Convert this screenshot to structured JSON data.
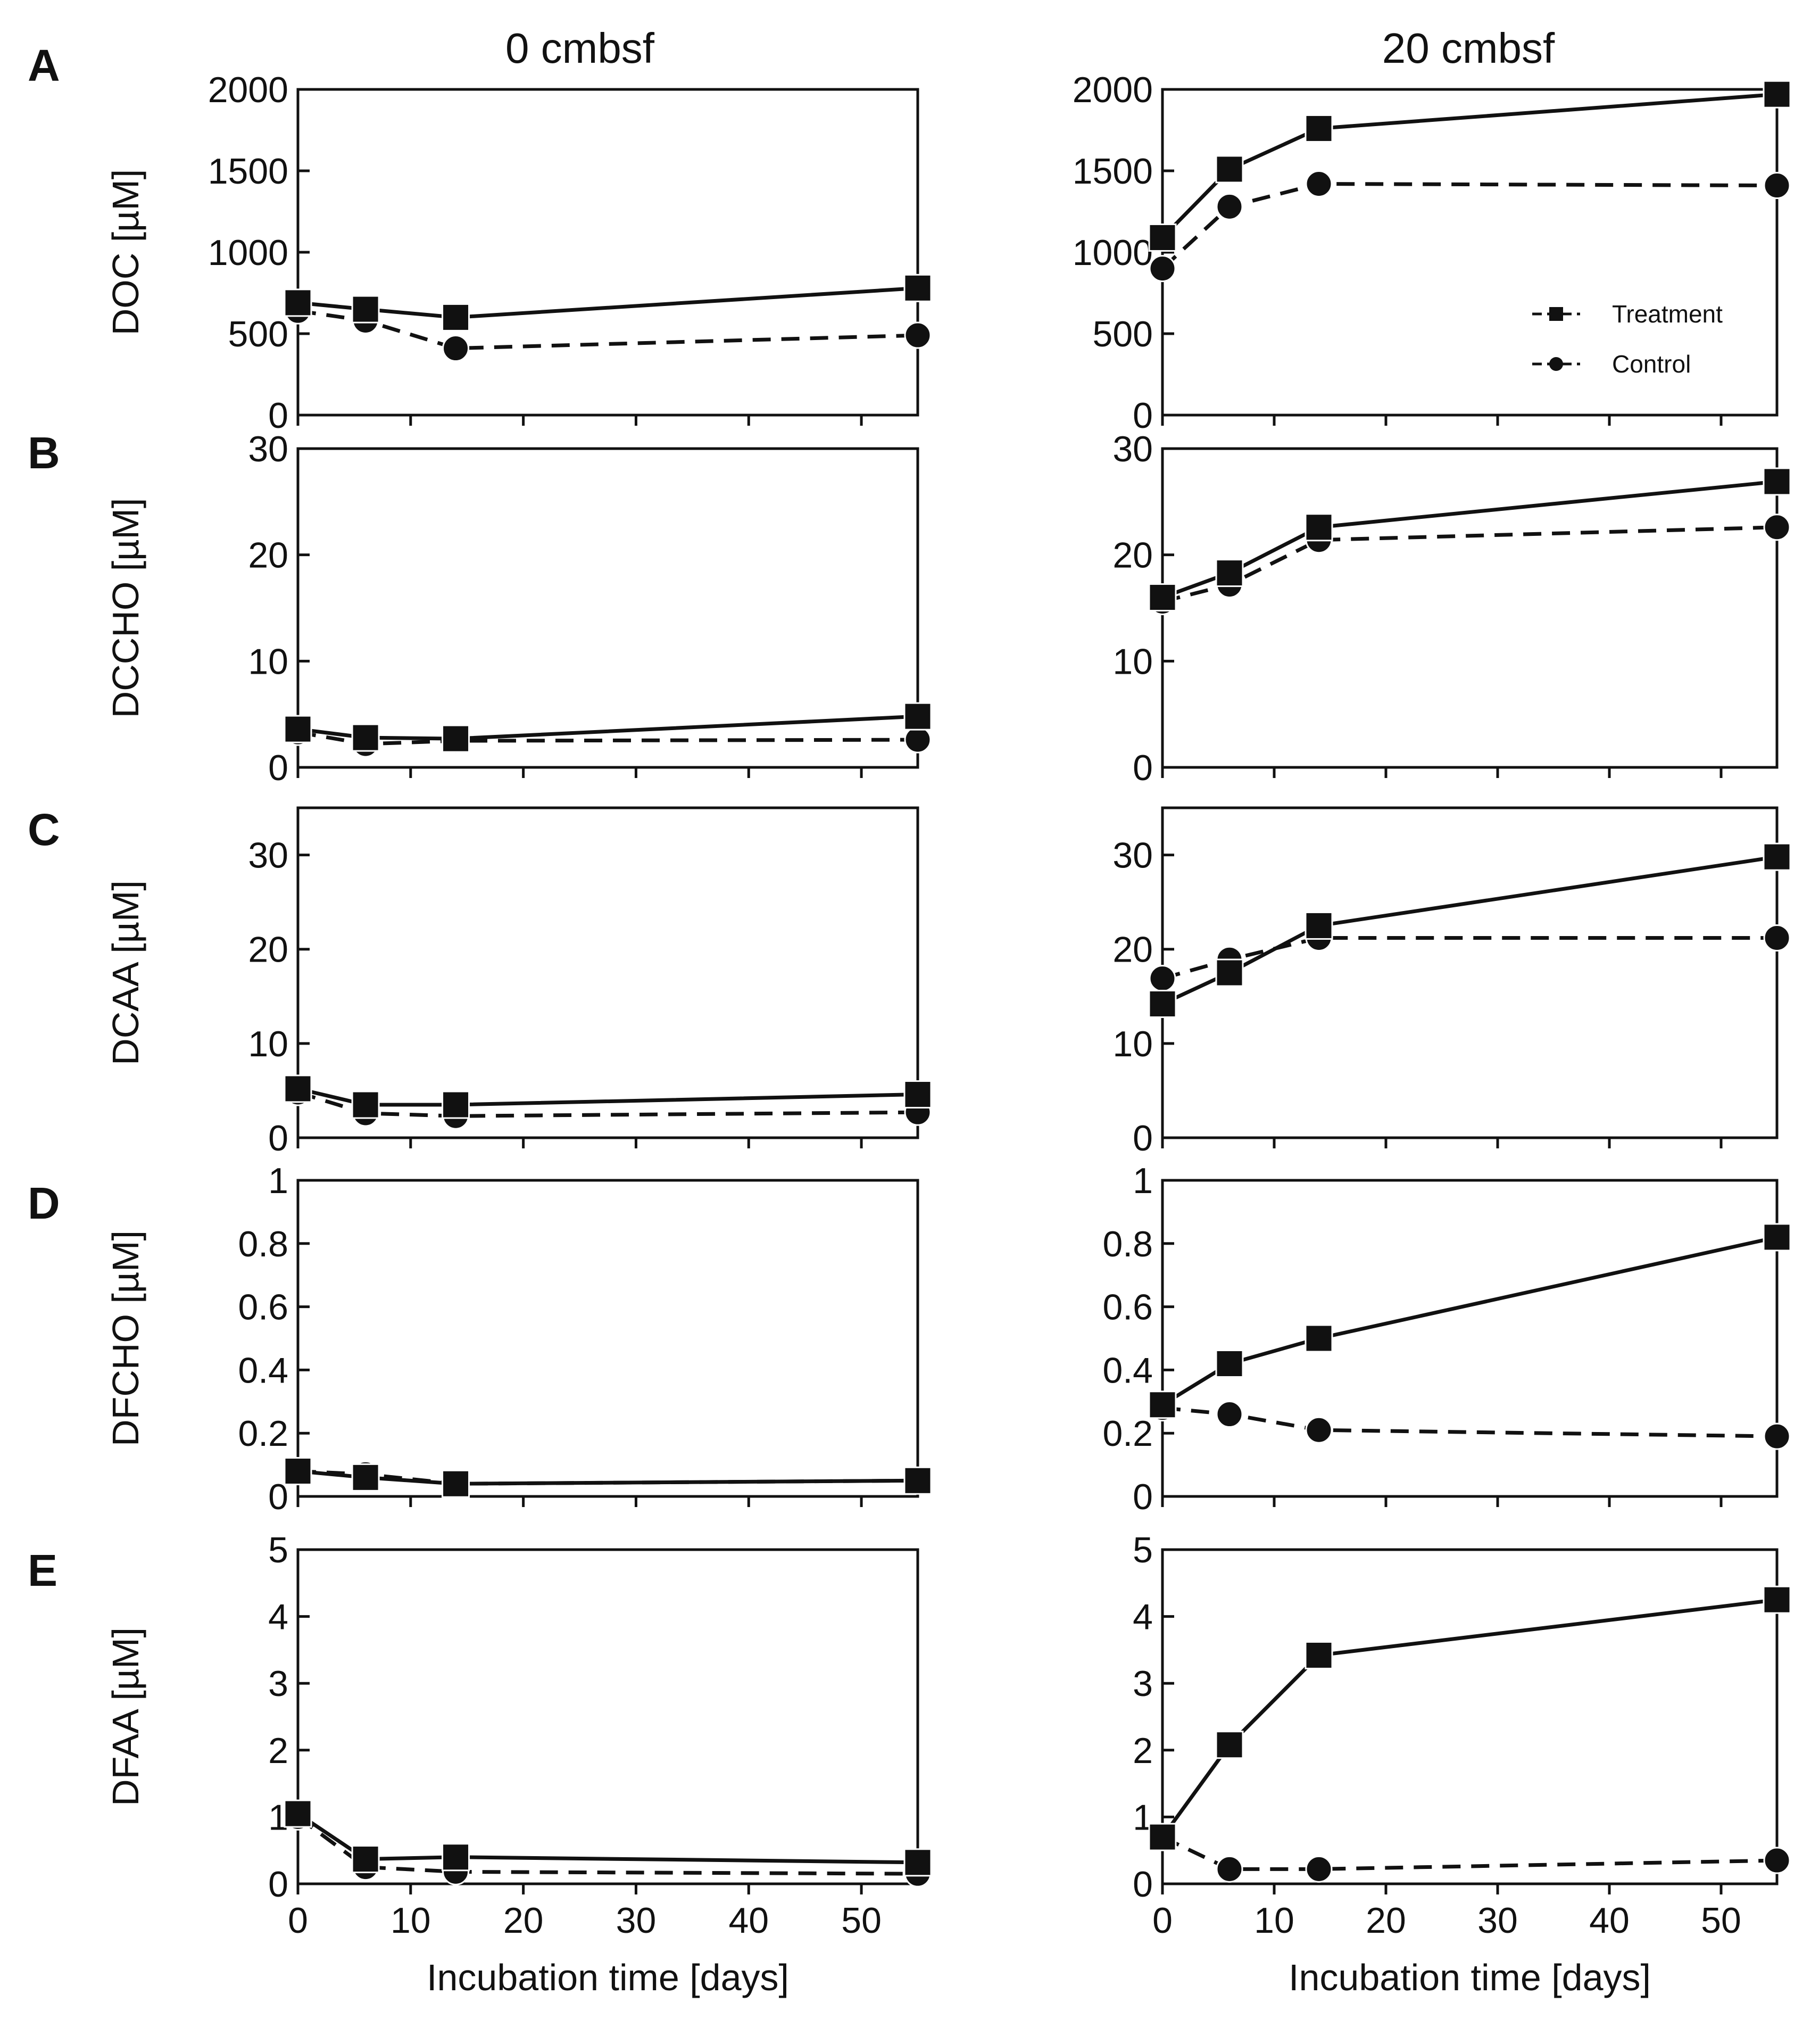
{
  "figure": {
    "columns": [
      "0 cmbsf",
      "20 cmbsf"
    ],
    "rows": [
      "A",
      "B",
      "C",
      "D",
      "E"
    ],
    "xlabel": "Incubation time [days]",
    "legend": {
      "treatment": "Treatment",
      "control": "Control"
    }
  },
  "chart_data": [
    {
      "id": "A-0",
      "row": "A",
      "column": "0 cmbsf",
      "type": "line",
      "ylabel": "DOC [µM]",
      "xlim": [
        0,
        55
      ],
      "ylim": [
        0,
        2000
      ],
      "yticks": [
        0,
        500,
        1000,
        1500,
        2000
      ],
      "ytick_labels": [
        "0",
        "500",
        "1000",
        "1500",
        "2000"
      ],
      "xticks": [
        0,
        10,
        20,
        30,
        40,
        50
      ],
      "xtick_labels": [
        "0",
        "10",
        "20",
        "30",
        "40",
        "50"
      ],
      "show_xtick_labels": false,
      "x": [
        0,
        6,
        14,
        55
      ],
      "series": [
        {
          "name": "Treatment",
          "marker": "square",
          "line": "solid",
          "values": [
            690,
            650,
            600,
            780
          ]
        },
        {
          "name": "Control",
          "marker": "circle",
          "line": "dashed",
          "values": [
            640,
            580,
            410,
            490
          ]
        }
      ]
    },
    {
      "id": "A-20",
      "row": "A",
      "column": "20 cmbsf",
      "type": "line",
      "ylabel": "",
      "xlim": [
        0,
        55
      ],
      "ylim": [
        0,
        2000
      ],
      "yticks": [
        0,
        500,
        1000,
        1500,
        2000
      ],
      "ytick_labels": [
        "0",
        "500",
        "1000",
        "1500",
        "2000"
      ],
      "xticks": [
        0,
        10,
        20,
        30,
        40,
        50
      ],
      "xtick_labels": [
        "0",
        "10",
        "20",
        "30",
        "40",
        "50"
      ],
      "show_xtick_labels": false,
      "x": [
        0,
        6,
        14,
        55
      ],
      "legend": "center-right",
      "series": [
        {
          "name": "Treatment",
          "marker": "square",
          "line": "solid",
          "values": [
            1090,
            1510,
            1760,
            1970
          ]
        },
        {
          "name": "Control",
          "marker": "circle",
          "line": "dashed",
          "values": [
            900,
            1280,
            1420,
            1410
          ]
        }
      ]
    },
    {
      "id": "B-0",
      "row": "B",
      "column": "0 cmbsf",
      "type": "line",
      "ylabel": "DCCHO [µM]",
      "xlim": [
        0,
        55
      ],
      "ylim": [
        0,
        30
      ],
      "yticks": [
        0,
        10,
        20,
        30
      ],
      "ytick_labels": [
        "0",
        "10",
        "20",
        "30"
      ],
      "xticks": [
        0,
        10,
        20,
        30,
        40,
        50
      ],
      "xtick_labels": [
        "0",
        "10",
        "20",
        "30",
        "40",
        "50"
      ],
      "show_xtick_labels": false,
      "x": [
        0,
        6,
        14,
        55
      ],
      "series": [
        {
          "name": "Treatment",
          "marker": "square",
          "line": "solid",
          "values": [
            3.6,
            2.8,
            2.7,
            4.8
          ]
        },
        {
          "name": "Control",
          "marker": "circle",
          "line": "dashed",
          "values": [
            3.3,
            2.2,
            2.5,
            2.6
          ]
        }
      ]
    },
    {
      "id": "B-20",
      "row": "B",
      "column": "20 cmbsf",
      "type": "line",
      "ylabel": "",
      "xlim": [
        0,
        55
      ],
      "ylim": [
        0,
        30
      ],
      "yticks": [
        0,
        10,
        20,
        30
      ],
      "ytick_labels": [
        "0",
        "10",
        "20",
        "30"
      ],
      "xticks": [
        0,
        10,
        20,
        30,
        40,
        50
      ],
      "xtick_labels": [
        "0",
        "10",
        "20",
        "30",
        "40",
        "50"
      ],
      "show_xtick_labels": false,
      "x": [
        0,
        6,
        14,
        55
      ],
      "series": [
        {
          "name": "Treatment",
          "marker": "square",
          "line": "solid",
          "values": [
            16,
            18.3,
            22.6,
            26.9
          ]
        },
        {
          "name": "Control",
          "marker": "circle",
          "line": "dashed",
          "values": [
            15.6,
            17.2,
            21.4,
            22.6
          ]
        }
      ]
    },
    {
      "id": "C-0",
      "row": "C",
      "column": "0 cmbsf",
      "type": "line",
      "ylabel": "DCAA  [µM]",
      "xlim": [
        0,
        55
      ],
      "ylim": [
        0,
        35
      ],
      "yticks": [
        0,
        10,
        20,
        30
      ],
      "ytick_labels": [
        "0",
        "10",
        "20",
        "30"
      ],
      "xticks": [
        0,
        10,
        20,
        30,
        40,
        50
      ],
      "xtick_labels": [
        "0",
        "10",
        "20",
        "30",
        "40",
        "50"
      ],
      "show_xtick_labels": false,
      "x": [
        0,
        6,
        14,
        55
      ],
      "series": [
        {
          "name": "Treatment",
          "marker": "square",
          "line": "solid",
          "values": [
            5.2,
            3.5,
            3.5,
            4.6
          ]
        },
        {
          "name": "Control",
          "marker": "circle",
          "line": "dashed",
          "values": [
            4.8,
            2.6,
            2.3,
            2.7
          ]
        }
      ]
    },
    {
      "id": "C-20",
      "row": "C",
      "column": "20 cmbsf",
      "type": "line",
      "ylabel": "",
      "xlim": [
        0,
        55
      ],
      "ylim": [
        0,
        35
      ],
      "yticks": [
        0,
        10,
        20,
        30
      ],
      "ytick_labels": [
        "0",
        "10",
        "20",
        "30"
      ],
      "xticks": [
        0,
        10,
        20,
        30,
        40,
        50
      ],
      "xtick_labels": [
        "0",
        "10",
        "20",
        "30",
        "40",
        "50"
      ],
      "show_xtick_labels": false,
      "x": [
        0,
        6,
        14,
        55
      ],
      "series": [
        {
          "name": "Treatment",
          "marker": "square",
          "line": "solid",
          "values": [
            14.2,
            17.5,
            22.5,
            29.8
          ]
        },
        {
          "name": "Control",
          "marker": "circle",
          "line": "dashed",
          "values": [
            16.9,
            18.9,
            21.2,
            21.2
          ]
        }
      ]
    },
    {
      "id": "D-0",
      "row": "D",
      "column": "0 cmbsf",
      "type": "line",
      "ylabel": "DFCHO [µM]",
      "xlim": [
        0,
        55
      ],
      "ylim": [
        0,
        1
      ],
      "yticks": [
        0,
        0.2,
        0.4,
        0.6,
        0.8,
        1
      ],
      "ytick_labels": [
        "0",
        "0.2",
        "0.4",
        "0.6",
        "0.8",
        "1"
      ],
      "xticks": [
        0,
        10,
        20,
        30,
        40,
        50
      ],
      "xtick_labels": [
        "0",
        "10",
        "20",
        "30",
        "40",
        "50"
      ],
      "show_xtick_labels": false,
      "x": [
        0,
        6,
        14,
        55
      ],
      "series": [
        {
          "name": "Treatment",
          "marker": "square",
          "line": "solid",
          "values": [
            0.08,
            0.06,
            0.04,
            0.05
          ]
        },
        {
          "name": "Control",
          "marker": "circle",
          "line": "dashed",
          "values": [
            0.08,
            0.07,
            0.04,
            0.05
          ]
        }
      ]
    },
    {
      "id": "D-20",
      "row": "D",
      "column": "20 cmbsf",
      "type": "line",
      "ylabel": "",
      "xlim": [
        0,
        55
      ],
      "ylim": [
        0,
        1
      ],
      "yticks": [
        0,
        0.2,
        0.4,
        0.6,
        0.8,
        1
      ],
      "ytick_labels": [
        "0",
        "0.2",
        "0.4",
        "0.6",
        "0.8",
        "1"
      ],
      "xticks": [
        0,
        10,
        20,
        30,
        40,
        50
      ],
      "xtick_labels": [
        "0",
        "10",
        "20",
        "30",
        "40",
        "50"
      ],
      "show_xtick_labels": false,
      "x": [
        0,
        6,
        14,
        55
      ],
      "series": [
        {
          "name": "Treatment",
          "marker": "square",
          "line": "solid",
          "values": [
            0.29,
            0.42,
            0.5,
            0.82
          ]
        },
        {
          "name": "Control",
          "marker": "circle",
          "line": "dashed",
          "values": [
            0.28,
            0.26,
            0.21,
            0.19
          ]
        }
      ]
    },
    {
      "id": "E-0",
      "row": "E",
      "column": "0 cmbsf",
      "type": "line",
      "ylabel": "DFAA [µM]",
      "xlim": [
        0,
        55
      ],
      "ylim": [
        0,
        5
      ],
      "yticks": [
        0,
        1,
        2,
        3,
        4,
        5
      ],
      "ytick_labels": [
        "0",
        "1",
        "2",
        "3",
        "4",
        "5"
      ],
      "xticks": [
        0,
        10,
        20,
        30,
        40,
        50
      ],
      "xtick_labels": [
        "0",
        "10",
        "20",
        "30",
        "40",
        "50"
      ],
      "show_xtick_labels": true,
      "xlabel": "Incubation time [days]",
      "x": [
        0,
        6,
        14,
        55
      ],
      "series": [
        {
          "name": "Treatment",
          "marker": "square",
          "line": "solid",
          "values": [
            1.05,
            0.37,
            0.4,
            0.32
          ]
        },
        {
          "name": "Control",
          "marker": "circle",
          "line": "dashed",
          "values": [
            1.0,
            0.25,
            0.18,
            0.15
          ]
        }
      ]
    },
    {
      "id": "E-20",
      "row": "E",
      "column": "20 cmbsf",
      "type": "line",
      "ylabel": "",
      "xlim": [
        0,
        55
      ],
      "ylim": [
        0,
        5
      ],
      "yticks": [
        0,
        1,
        2,
        3,
        4,
        5
      ],
      "ytick_labels": [
        "0",
        "1",
        "2",
        "3",
        "4",
        "5"
      ],
      "xticks": [
        0,
        10,
        20,
        30,
        40,
        50
      ],
      "xtick_labels": [
        "0",
        "10",
        "20",
        "30",
        "40",
        "50"
      ],
      "show_xtick_labels": true,
      "xlabel": "Incubation time [days]",
      "x": [
        0,
        6,
        14,
        55
      ],
      "series": [
        {
          "name": "Treatment",
          "marker": "square",
          "line": "solid",
          "values": [
            0.7,
            2.08,
            3.42,
            4.25
          ]
        },
        {
          "name": "Control",
          "marker": "circle",
          "line": "dashed",
          "values": [
            0.7,
            0.22,
            0.22,
            0.35
          ]
        }
      ]
    }
  ]
}
